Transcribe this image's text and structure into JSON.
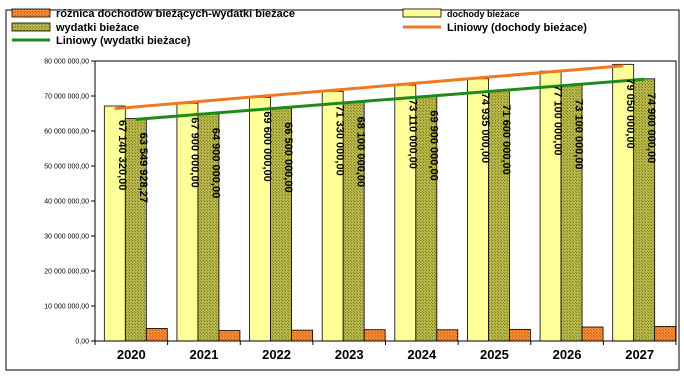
{
  "chart_data": {
    "type": "bar",
    "categories": [
      "2020",
      "2021",
      "2022",
      "2023",
      "2024",
      "2025",
      "2026",
      "2027"
    ],
    "series": [
      {
        "name": "dochody bieżace",
        "values": [
          67140320,
          67900000,
          69600000,
          71330000,
          73110000,
          74935000,
          77100000,
          79050000
        ],
        "labels": [
          "67 140 320,00",
          "67 900 000,00",
          "69 600 000,00",
          "71 330 000,00",
          "73 110 000,00",
          "74 935 000,00",
          "77 100 000,00",
          "79 050 000,00"
        ],
        "color": "#FFFF99"
      },
      {
        "name": "wydatki bieżace",
        "values": [
          63549928.27,
          64900000,
          66500000,
          68100000,
          69900000,
          71600000,
          73100000,
          74900000
        ],
        "labels": [
          "63 549 928,27",
          "64 900 000,00",
          "66 500 000,00",
          "68 100 000,00",
          "69 900 000,00",
          "71 600 000,00",
          "73 100 000,00",
          "74 900 000,00"
        ],
        "color": "#A6A63A"
      },
      {
        "name": "różnica dochodów bieżących-wydatki bieżace",
        "values": [
          3590391.73,
          3000000,
          3100000,
          3230000,
          3210000,
          3335000,
          4000000,
          4150000
        ],
        "color": "#F07820"
      }
    ],
    "trendlines": [
      {
        "name": "Liniowy (dochody bieżace)",
        "color": "#F07820",
        "of": "dochody bieżace"
      },
      {
        "name": "Liniowy (wydatki bieżace)",
        "color": "#1E8A1E",
        "of": "wydatki bieżace"
      }
    ],
    "yticks": [
      "0,00",
      "10 000 000,00",
      "20 000 000,00",
      "30 000 000,00",
      "40 000 000,00",
      "50 000 000,00",
      "60 000 000,00",
      "70 000 000,00",
      "80 000 000,00"
    ],
    "ylim": [
      0,
      80000000
    ],
    "grid": false,
    "legend_position": "top"
  }
}
